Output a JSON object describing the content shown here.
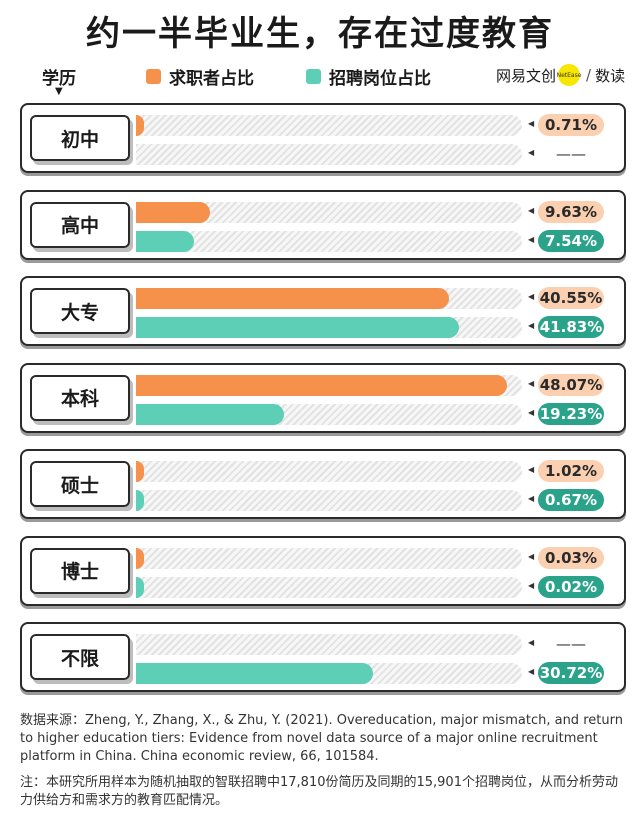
{
  "title": "约一半毕业生，存在过度教育",
  "header": {
    "xueli": "学历",
    "arrow": "▼",
    "brand_left": "网易文创",
    "brand_dot": "NetEase",
    "brand_right": "数读"
  },
  "colors": {
    "demand": "#f5914a",
    "supply": "#5dcfb6",
    "pill_orange": "#fbd0b0",
    "pill_green": "#2aa38a"
  },
  "chart_data": {
    "type": "bar",
    "title": "约一半毕业生，存在过度教育",
    "axis_max": 50,
    "series": [
      {
        "name": "求职者占比",
        "color": "#f5914a"
      },
      {
        "name": "招聘岗位占比",
        "color": "#5dcfb6"
      }
    ],
    "categories": [
      {
        "label": "初中",
        "values": [
          0.71,
          null
        ],
        "labels": [
          "0.71%",
          "——"
        ]
      },
      {
        "label": "高中",
        "values": [
          9.63,
          7.54
        ],
        "labels": [
          "9.63%",
          "7.54%"
        ]
      },
      {
        "label": "大专",
        "values": [
          40.55,
          41.83
        ],
        "labels": [
          "40.55%",
          "41.83%"
        ]
      },
      {
        "label": "本科",
        "values": [
          48.07,
          19.23
        ],
        "labels": [
          "48.07%",
          "19.23%"
        ]
      },
      {
        "label": "硕士",
        "values": [
          1.02,
          0.67
        ],
        "labels": [
          "1.02%",
          "0.67%"
        ]
      },
      {
        "label": "博士",
        "values": [
          0.03,
          0.02
        ],
        "labels": [
          "0.03%",
          "0.02%"
        ]
      },
      {
        "label": "不限",
        "values": [
          null,
          30.72
        ],
        "labels": [
          "——",
          "30.72%"
        ]
      }
    ]
  },
  "source": "数据来源：Zheng, Y., Zhang, X., & Zhu, Y. (2021). Overeducation, major mismatch, and return to higher education tiers: Evidence from novel data source of a major online recruitment platform in China. China economic review, 66, 101584.",
  "note": "注：本研究所用样本为随机抽取的智联招聘中17,810份简历及同期的15,901个招聘岗位，从而分析劳动力供给方和需求方的教育匹配情况。"
}
